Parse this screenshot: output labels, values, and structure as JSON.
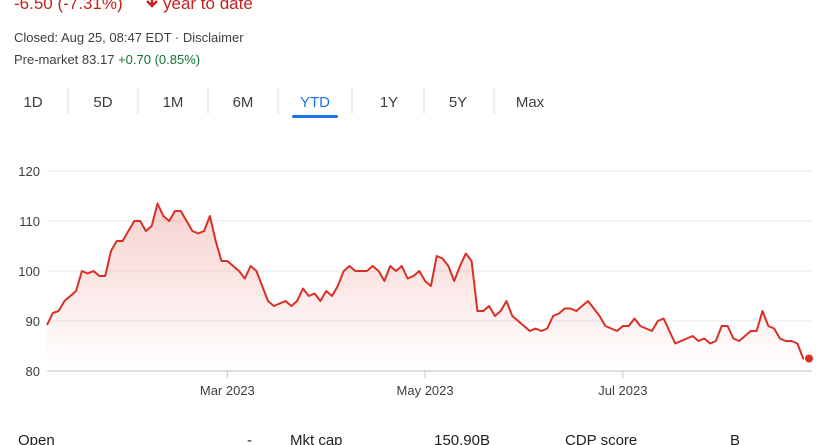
{
  "header": {
    "change": "-6.50 (-7.31%)",
    "period": "year to date",
    "closed": "Closed: Aug 25, 08:47 EDT · Disclaimer",
    "premarket": "Pre-market 83.17",
    "premarket_change": "+0.70 (0.85%)"
  },
  "tabs": [
    "1D",
    "5D",
    "1M",
    "6M",
    "YTD",
    "1Y",
    "5Y",
    "Max"
  ],
  "selected_tab": 4,
  "chart_data": {
    "type": "line",
    "color": "#d93025",
    "categories": [
      null,
      null,
      null,
      null,
      null,
      null,
      null,
      null,
      null,
      null,
      null,
      null,
      null,
      null,
      null,
      null,
      null,
      null,
      null,
      null,
      null,
      null,
      null,
      null,
      null,
      null,
      null,
      null,
      null,
      null,
      null,
      "Mar 2023",
      null,
      null,
      null,
      null,
      null,
      null,
      null,
      null,
      null,
      null,
      null,
      null,
      null,
      null,
      null,
      null,
      null,
      null,
      null,
      null,
      null,
      null,
      null,
      null,
      null,
      null,
      null,
      null,
      null,
      null,
      null,
      null,
      null,
      "May 2023",
      null,
      null,
      null,
      null,
      null,
      null,
      null,
      null,
      null,
      null,
      null,
      null,
      null,
      null,
      null,
      null,
      null,
      null,
      null,
      null,
      null,
      null,
      null,
      null,
      null,
      null,
      null,
      null,
      null,
      null,
      null,
      null,
      null,
      "Jul 2023",
      null,
      null,
      null,
      null,
      null,
      null,
      null,
      null,
      null,
      null,
      null,
      null,
      null,
      null,
      null,
      null,
      null,
      null,
      null,
      null,
      null,
      null,
      null,
      null,
      null,
      null,
      null,
      null,
      null,
      null,
      null,
      null
    ],
    "values": [
      89.2,
      91.6,
      92,
      94,
      95,
      96,
      100,
      99.5,
      100,
      99,
      99,
      104,
      106,
      106,
      108,
      110,
      110,
      108,
      109,
      113.5,
      111,
      110,
      112,
      112,
      110,
      108,
      107.5,
      108,
      111,
      106,
      102,
      102,
      101,
      100,
      98.5,
      101,
      100,
      97,
      94,
      93,
      93.5,
      94,
      93,
      94,
      96.5,
      95,
      95.5,
      94,
      96,
      95,
      97,
      100,
      101,
      100,
      100,
      100,
      101,
      100,
      98,
      101,
      100,
      101,
      98.5,
      99,
      100,
      98,
      97,
      103,
      102.5,
      101,
      98,
      101,
      103.5,
      102,
      92,
      92,
      93,
      91,
      92,
      94,
      91,
      90,
      89,
      88,
      88.5,
      88,
      88.5,
      91,
      91.5,
      92.5,
      92.5,
      92,
      93,
      94,
      92.5,
      91,
      89,
      88.5,
      88,
      89,
      89,
      90.5,
      89,
      88.5,
      88,
      90,
      90.5,
      88,
      85.5,
      86,
      86.5,
      87,
      86,
      86.5,
      85.5,
      86,
      89,
      89,
      86.5,
      86,
      87,
      88,
      88,
      92,
      89,
      88.5,
      86.5,
      86,
      86,
      85.5,
      82.5,
      82.5
    ],
    "ylim": [
      80,
      120
    ],
    "yticks": [
      80,
      90,
      100,
      110,
      120
    ],
    "grid": true
  },
  "stats": [
    {
      "label": "Open",
      "value": "-"
    },
    {
      "label": "Mkt cap",
      "value": "150.90B"
    },
    {
      "label": "CDP score",
      "value": "B"
    }
  ]
}
